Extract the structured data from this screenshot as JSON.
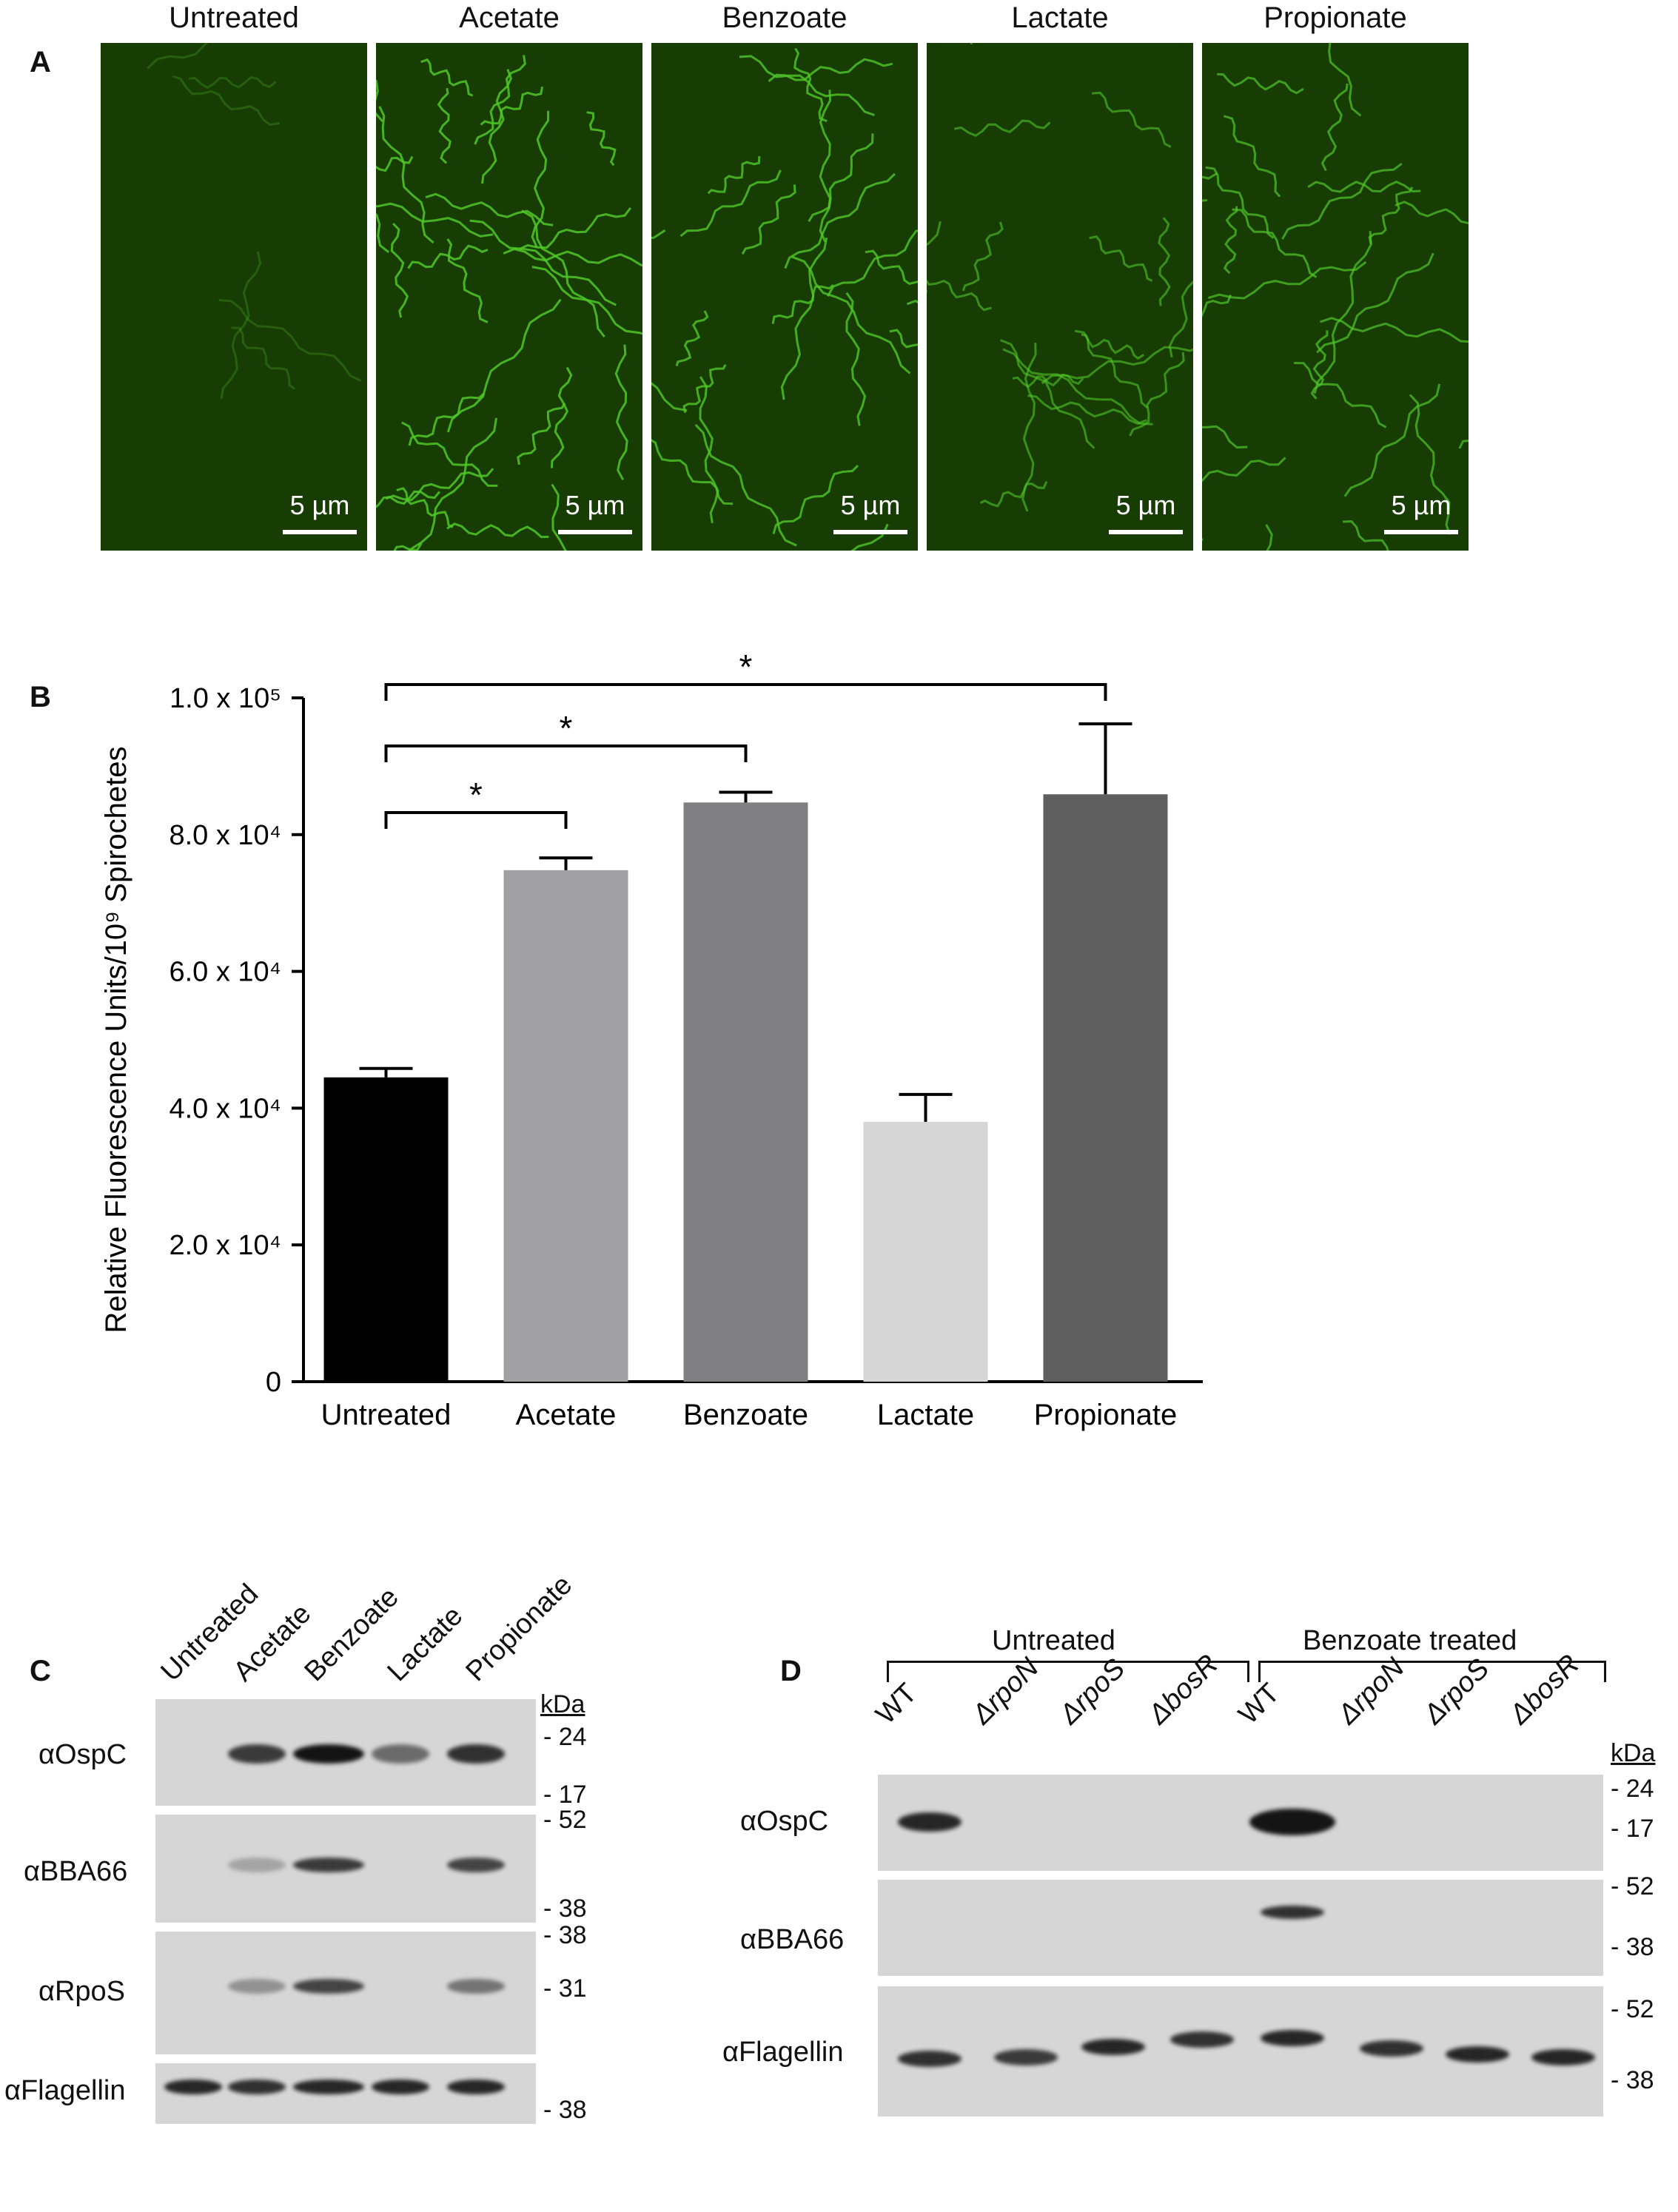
{
  "panels": {
    "A": {
      "letter": "A",
      "columns": [
        "Untreated",
        "Acetate",
        "Benzoate",
        "Lactate",
        "Propionate"
      ],
      "scalebar_label": "5 µm"
    },
    "B": {
      "letter": "B"
    },
    "C": {
      "letter": "C",
      "lanes": [
        "Untreated",
        "Acetate",
        "Benzoate",
        "Lactate",
        "Propionate"
      ],
      "kda_header": "kDa",
      "rows": [
        {
          "label": "αOspC",
          "markers": [
            "24",
            "17"
          ]
        },
        {
          "label": "αBBA66",
          "markers": [
            "52",
            "38"
          ]
        },
        {
          "label": "αRpoS",
          "markers": [
            "38",
            "31"
          ]
        },
        {
          "label": "αFlagellin",
          "markers": [
            "38"
          ]
        }
      ]
    },
    "D": {
      "letter": "D",
      "groups": [
        "Untreated",
        "Benzoate treated"
      ],
      "lanes": [
        "WT",
        "ΔrpoN",
        "ΔrpoS",
        "ΔbosR",
        "WT",
        "ΔrpoN",
        "ΔrpoS",
        "ΔbosR"
      ],
      "kda_header": "kDa",
      "rows": [
        {
          "label": "αOspC",
          "markers": [
            "24",
            "17"
          ]
        },
        {
          "label": "αBBA66",
          "markers": [
            "52",
            "38"
          ]
        },
        {
          "label": "αFlagellin",
          "markers": [
            "52",
            "38"
          ]
        }
      ]
    }
  },
  "chart_data": {
    "type": "bar",
    "title": "",
    "xlabel": "",
    "ylabel": "Relative Fluorescence Units/10⁹ Spirochetes",
    "categories": [
      "Untreated",
      "Acetate",
      "Benzoate",
      "Lactate",
      "Propionate"
    ],
    "values": [
      44500,
      74800,
      84700,
      38000,
      85900
    ],
    "errors": [
      1300,
      1800,
      1500,
      4000,
      10300
    ],
    "bar_colors": [
      "#000000",
      "#a0a0a5",
      "#808082",
      "#d6d6d6",
      "#5f5f5f"
    ],
    "ylim": [
      0,
      100000
    ],
    "yticks": [
      0,
      20000,
      40000,
      60000,
      80000,
      100000
    ],
    "ytick_labels": [
      "0",
      "2.0 x 10⁴",
      "4.0 x 10⁴",
      "6.0 x 10⁴",
      "8.0 x 10⁴",
      "1.0 x 10⁵"
    ],
    "significance": [
      {
        "from": "Untreated",
        "to": "Acetate",
        "label": "*"
      },
      {
        "from": "Untreated",
        "to": "Benzoate",
        "label": "*"
      },
      {
        "from": "Untreated",
        "to": "Propionate",
        "label": "*"
      }
    ],
    "grid": false
  }
}
